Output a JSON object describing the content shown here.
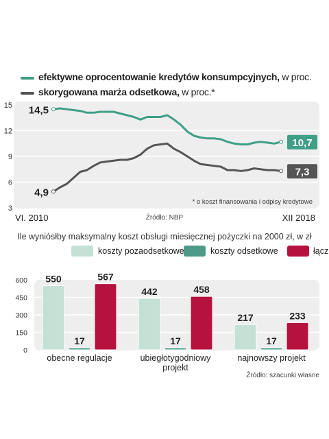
{
  "chart_data": [
    {
      "type": "line",
      "legend": [
        {
          "bold": "efektywne oprocentowanie kredytów konsumpcyjnych,",
          "rest": " w proc.",
          "color": "#3f9e86"
        },
        {
          "bold": "skorygowana marża odsetkowa,",
          "rest": " w proc.*",
          "color": "#555555"
        }
      ],
      "yticks": [
        "15",
        "12",
        "9",
        "6",
        "3"
      ],
      "ylim": [
        3,
        15
      ],
      "x_start_label": "VI. 2010",
      "x_end_label": "XII 2018",
      "footnote": "* o koszt finansowania i odpisy kredytowe",
      "source": "Źródło: NBP",
      "series": [
        {
          "name": "efektywne oprocentowanie kredytów konsumpcyjnych",
          "color": "#3f9e86",
          "values": [
            14.5,
            14.6,
            14.5,
            14.4,
            14.3,
            14.1,
            14.1,
            14.2,
            14.2,
            14.2,
            14.0,
            13.8,
            13.6,
            13.3,
            13.6,
            13.6,
            13.6,
            13.8,
            13.3,
            12.7,
            11.9,
            11.4,
            11.2,
            11.1,
            11.1,
            11.0,
            10.7,
            10.5,
            10.4,
            10.4,
            10.6,
            10.7,
            10.6,
            10.5,
            10.7
          ],
          "start_label": "14,5",
          "end_label": "10,7"
        },
        {
          "name": "skorygowana marża odsetkowa",
          "color": "#555555",
          "values": [
            4.9,
            5.4,
            5.8,
            6.5,
            7.2,
            7.4,
            7.9,
            8.3,
            8.4,
            8.5,
            8.6,
            8.6,
            8.8,
            9.2,
            9.9,
            10.3,
            10.4,
            10.5,
            9.9,
            9.5,
            9.0,
            8.5,
            8.1,
            8.0,
            7.9,
            7.8,
            7.4,
            7.4,
            7.3,
            7.4,
            7.6,
            7.5,
            7.4,
            7.4,
            7.3
          ],
          "start_label": "4,9",
          "end_label": "7,3"
        }
      ]
    },
    {
      "type": "bar",
      "title": "Ile wyniósłby maksymalny koszt obsługi miesięcznej pożyczki na 2000 zł, w zł",
      "categories": [
        "obecne regulacje",
        "ubiegłotygodniowy projekt",
        "najnowszy projekt"
      ],
      "category_lines": [
        [
          "obecne regulacje"
        ],
        [
          "ubiegłotygodniowy",
          "projekt"
        ],
        [
          "najnowszy projekt"
        ]
      ],
      "series": [
        {
          "name": "koszty pozaodsetkowe",
          "color": "#c5e0d4",
          "values": [
            550,
            442,
            217
          ],
          "labels": [
            "550",
            "442",
            "217"
          ]
        },
        {
          "name": "koszty odsetkowe",
          "color": "#4e9a88",
          "values": [
            17,
            17,
            17
          ],
          "labels": [
            "17",
            "17",
            "17"
          ]
        },
        {
          "name": "łącznie",
          "color": "#b5123f",
          "values": [
            567,
            458,
            233
          ],
          "labels": [
            "567",
            "458",
            "233"
          ]
        }
      ],
      "yticks": [
        "600",
        "450",
        "300",
        "150",
        "0"
      ],
      "ylim": [
        0,
        600
      ],
      "source": "Źródło: szacunki własne"
    }
  ]
}
